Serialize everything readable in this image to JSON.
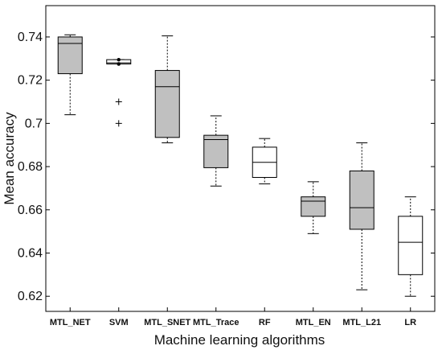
{
  "chart_data": {
    "type": "boxplot",
    "xlabel": "Machine learning algorithms",
    "ylabel": "Mean accuracy",
    "ylim": [
      0.613,
      0.7545
    ],
    "yticks": [
      "0.62",
      "0.64",
      "0.66",
      "0.68",
      "0.7",
      "0.72",
      "0.74"
    ],
    "grid": false,
    "categories": [
      "MTL_NET",
      "SVM",
      "MTL_SNET",
      "MTL_Trace",
      "RF",
      "MTL_EN",
      "MTL_L21",
      "LR"
    ],
    "boxes": [
      {
        "whisker_low": 0.704,
        "q1": 0.723,
        "median": 0.737,
        "q3": 0.74,
        "whisker_high": 0.741,
        "fill": "#c0c0c0",
        "outliers": []
      },
      {
        "whisker_low": 0.7275,
        "q1": 0.7275,
        "median": 0.728,
        "q3": 0.7295,
        "whisker_high": 0.7295,
        "fill": "#ffffff",
        "outliers": [
          0.71,
          0.7
        ]
      },
      {
        "whisker_low": 0.691,
        "q1": 0.6935,
        "median": 0.717,
        "q3": 0.7245,
        "whisker_high": 0.7405,
        "fill": "#c0c0c0",
        "outliers": []
      },
      {
        "whisker_low": 0.671,
        "q1": 0.6795,
        "median": 0.6925,
        "q3": 0.6945,
        "whisker_high": 0.7035,
        "fill": "#c0c0c0",
        "outliers": []
      },
      {
        "whisker_low": 0.672,
        "q1": 0.675,
        "median": 0.682,
        "q3": 0.689,
        "whisker_high": 0.693,
        "fill": "#ffffff",
        "outliers": []
      },
      {
        "whisker_low": 0.649,
        "q1": 0.657,
        "median": 0.664,
        "q3": 0.666,
        "whisker_high": 0.673,
        "fill": "#c0c0c0",
        "outliers": []
      },
      {
        "whisker_low": 0.623,
        "q1": 0.651,
        "median": 0.661,
        "q3": 0.678,
        "whisker_high": 0.691,
        "fill": "#c0c0c0",
        "outliers": []
      },
      {
        "whisker_low": 0.62,
        "q1": 0.63,
        "median": 0.645,
        "q3": 0.657,
        "whisker_high": 0.666,
        "fill": "#ffffff",
        "outliers": []
      }
    ],
    "colors": {
      "axis": "#000000",
      "box_fill_gray": "#c0c0c0",
      "box_fill_white": "#ffffff"
    }
  }
}
